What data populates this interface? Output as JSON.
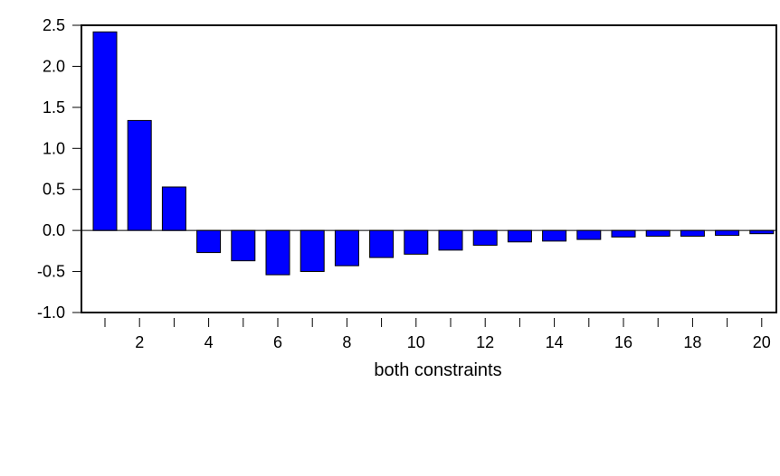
{
  "chart_data": {
    "type": "bar",
    "xlabel": "both constraints",
    "ylabel": "",
    "title": "",
    "ylim": [
      -1.0,
      2.5
    ],
    "yticks": [
      "-1.0",
      "-0.5",
      "0.0",
      "0.5",
      "1.0",
      "1.5",
      "2.0",
      "2.5"
    ],
    "categories": [
      1,
      2,
      3,
      4,
      5,
      6,
      7,
      8,
      9,
      10,
      11,
      12,
      13,
      14,
      15,
      16,
      17,
      18,
      19,
      20
    ],
    "xtick_labels": [
      "2",
      "4",
      "6",
      "8",
      "10",
      "12",
      "14",
      "16",
      "18",
      "20"
    ],
    "values": [
      2.42,
      1.34,
      0.53,
      -0.27,
      -0.37,
      -0.54,
      -0.5,
      -0.43,
      -0.33,
      -0.29,
      -0.24,
      -0.18,
      -0.14,
      -0.13,
      -0.11,
      -0.08,
      -0.07,
      -0.07,
      -0.06,
      -0.04
    ],
    "grid": false,
    "bar_color": "#0000ff",
    "bar_edge_color": "#000000"
  }
}
